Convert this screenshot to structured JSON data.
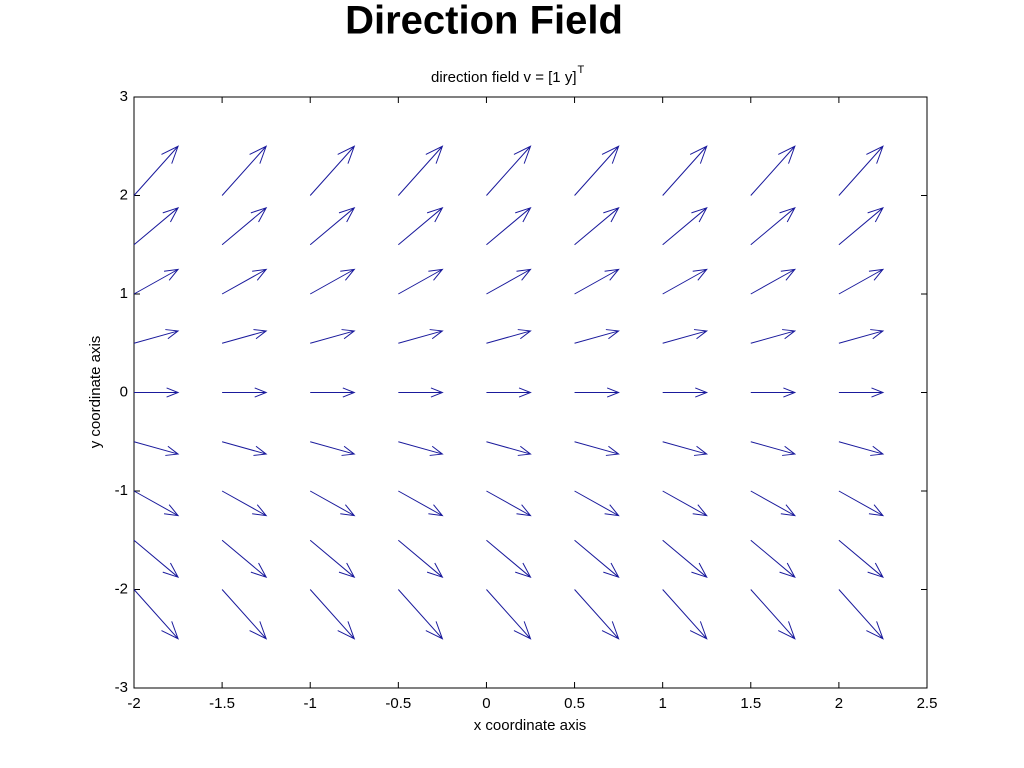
{
  "chart_data": {
    "type": "quiver",
    "page_title": "Direction Field",
    "title": "direction field v = [1  y]",
    "title_superscript": "T",
    "xlabel": "x coordinate axis",
    "ylabel": "y coordinate axis",
    "color": "#1a1a9c",
    "x": [
      -2,
      -1.5,
      -1,
      -0.5,
      0,
      0.5,
      1,
      1.5,
      2
    ],
    "y": [
      -2,
      -1.5,
      -1,
      -0.5,
      0,
      0.5,
      1,
      1.5,
      2
    ],
    "u": [
      [
        0.25,
        0.25,
        0.25,
        0.25,
        0.25,
        0.25,
        0.25,
        0.25,
        0.25
      ],
      [
        0.25,
        0.25,
        0.25,
        0.25,
        0.25,
        0.25,
        0.25,
        0.25,
        0.25
      ],
      [
        0.25,
        0.25,
        0.25,
        0.25,
        0.25,
        0.25,
        0.25,
        0.25,
        0.25
      ],
      [
        0.25,
        0.25,
        0.25,
        0.25,
        0.25,
        0.25,
        0.25,
        0.25,
        0.25
      ],
      [
        0.25,
        0.25,
        0.25,
        0.25,
        0.25,
        0.25,
        0.25,
        0.25,
        0.25
      ],
      [
        0.25,
        0.25,
        0.25,
        0.25,
        0.25,
        0.25,
        0.25,
        0.25,
        0.25
      ],
      [
        0.25,
        0.25,
        0.25,
        0.25,
        0.25,
        0.25,
        0.25,
        0.25,
        0.25
      ],
      [
        0.25,
        0.25,
        0.25,
        0.25,
        0.25,
        0.25,
        0.25,
        0.25,
        0.25
      ],
      [
        0.25,
        0.25,
        0.25,
        0.25,
        0.25,
        0.25,
        0.25,
        0.25,
        0.25
      ]
    ],
    "v": [
      [
        -0.5,
        -0.5,
        -0.5,
        -0.5,
        -0.5,
        -0.5,
        -0.5,
        -0.5,
        -0.5
      ],
      [
        -0.375,
        -0.375,
        -0.375,
        -0.375,
        -0.375,
        -0.375,
        -0.375,
        -0.375,
        -0.375
      ],
      [
        -0.25,
        -0.25,
        -0.25,
        -0.25,
        -0.25,
        -0.25,
        -0.25,
        -0.25,
        -0.25
      ],
      [
        -0.125,
        -0.125,
        -0.125,
        -0.125,
        -0.125,
        -0.125,
        -0.125,
        -0.125,
        -0.125
      ],
      [
        0,
        0,
        0,
        0,
        0,
        0,
        0,
        0,
        0
      ],
      [
        0.125,
        0.125,
        0.125,
        0.125,
        0.125,
        0.125,
        0.125,
        0.125,
        0.125
      ],
      [
        0.25,
        0.25,
        0.25,
        0.25,
        0.25,
        0.25,
        0.25,
        0.25,
        0.25
      ],
      [
        0.375,
        0.375,
        0.375,
        0.375,
        0.375,
        0.375,
        0.375,
        0.375,
        0.375
      ],
      [
        0.5,
        0.5,
        0.5,
        0.5,
        0.5,
        0.5,
        0.5,
        0.5,
        0.5
      ]
    ],
    "xlim": [
      -2,
      2.5
    ],
    "xticks": [
      -2,
      -1.5,
      -1,
      -0.5,
      0,
      0.5,
      1,
      1.5,
      2,
      2.5
    ],
    "ylim": [
      -3,
      3
    ],
    "yticks": [
      -3,
      -2,
      -1,
      0,
      1,
      2,
      3
    ]
  }
}
